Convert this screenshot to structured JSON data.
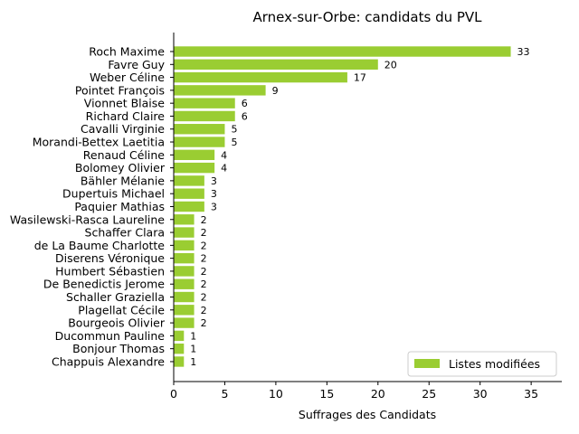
{
  "chart_data": {
    "type": "bar",
    "orientation": "horizontal",
    "title": "Arnex-sur-Orbe: candidats du PVL",
    "xlabel": "Suffrages des Candidats",
    "ylabel": "",
    "xlim": [
      0,
      38
    ],
    "xticks": [
      0,
      5,
      10,
      15,
      20,
      25,
      30,
      35
    ],
    "grid": false,
    "legend_position": "lower-right",
    "color": "#9acd32",
    "categories": [
      "Roch Maxime",
      "Favre Guy",
      "Weber Céline",
      "Pointet François",
      "Vionnet Blaise",
      "Richard Claire",
      "Cavalli Virginie",
      "Morandi-Bettex Laetitia",
      "Renaud Céline",
      "Bolomey Olivier",
      "Bähler Mélanie",
      "Dupertuis Michael",
      "Paquier Mathias",
      "Wasilewski-Rasca Laureline",
      "Schaffer Clara",
      "de La Baume Charlotte",
      "Diserens Véronique",
      "Humbert Sébastien",
      "De Benedictis Jerome",
      "Schaller Graziella",
      "Plagellat Cécile",
      "Bourgeois Olivier",
      "Ducommun Pauline",
      "Bonjour Thomas",
      "Chappuis Alexandre"
    ],
    "series": [
      {
        "name": "Listes modifiées",
        "values": [
          33,
          20,
          17,
          9,
          6,
          6,
          5,
          5,
          4,
          4,
          3,
          3,
          3,
          2,
          2,
          2,
          2,
          2,
          2,
          2,
          2,
          2,
          1,
          1,
          1
        ]
      }
    ]
  }
}
